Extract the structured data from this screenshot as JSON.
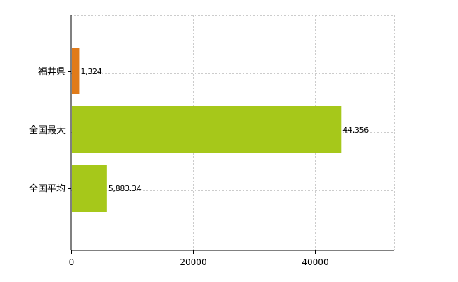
{
  "chart_data": {
    "type": "bar",
    "orientation": "horizontal",
    "categories": [
      "福井県",
      "全国最大",
      "全国平均"
    ],
    "values": [
      1324,
      44356,
      5883.34
    ],
    "value_labels": [
      "1,324",
      "44,356",
      "5,883.34"
    ],
    "bar_colors": [
      "#e07b1a",
      "#a6c81a",
      "#a6c81a"
    ],
    "xlim": [
      0,
      53000
    ],
    "xticks": [
      0,
      20000,
      40000
    ],
    "xtick_labels": [
      "0",
      "20000",
      "40000"
    ],
    "grid": true,
    "title": "",
    "xlabel": "",
    "ylabel": ""
  }
}
